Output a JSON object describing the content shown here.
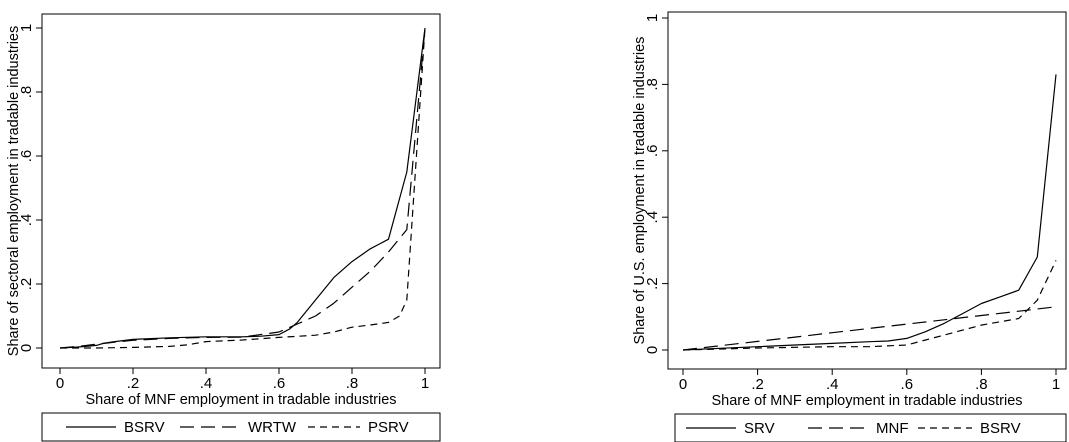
{
  "chart_data": [
    {
      "type": "line",
      "ylabel": "Share of sectoral employment in tradable industries",
      "xlabel": "Share of MNF employment in tradable industries",
      "xlim": [
        0,
        1
      ],
      "ylim": [
        0,
        1
      ],
      "x_ticks": [
        0,
        0.2,
        0.4,
        0.6,
        0.8,
        1
      ],
      "x_tick_labels": [
        "0",
        ".2",
        ".4",
        ".6",
        ".8",
        "1"
      ],
      "y_ticks": [
        0,
        0.2,
        0.4,
        0.6,
        0.8,
        1
      ],
      "y_tick_labels": [
        "0",
        ".2",
        ".4",
        ".6",
        ".8",
        "1"
      ],
      "grid": false,
      "legend_position": "bottom",
      "series": [
        {
          "name": "BSRV",
          "dash": "solid",
          "x": [
            0,
            0.05,
            0.1,
            0.12,
            0.15,
            0.2,
            0.3,
            0.4,
            0.5,
            0.55,
            0.6,
            0.63,
            0.65,
            0.7,
            0.75,
            0.8,
            0.85,
            0.9,
            0.95,
            1.0
          ],
          "y": [
            0,
            0.003,
            0.008,
            0.015,
            0.02,
            0.027,
            0.032,
            0.035,
            0.035,
            0.037,
            0.042,
            0.06,
            0.08,
            0.15,
            0.22,
            0.27,
            0.31,
            0.34,
            0.55,
            1.0
          ]
        },
        {
          "name": "WRTW",
          "dash": "long",
          "x": [
            0,
            0.05,
            0.1,
            0.15,
            0.2,
            0.3,
            0.4,
            0.5,
            0.6,
            0.65,
            0.7,
            0.75,
            0.8,
            0.85,
            0.9,
            0.95,
            1.0
          ],
          "y": [
            0,
            0.005,
            0.012,
            0.018,
            0.024,
            0.03,
            0.033,
            0.034,
            0.05,
            0.075,
            0.1,
            0.14,
            0.19,
            0.24,
            0.3,
            0.37,
            1.0
          ]
        },
        {
          "name": "PSRV",
          "dash": "short",
          "x": [
            0,
            0.1,
            0.2,
            0.3,
            0.35,
            0.4,
            0.5,
            0.6,
            0.7,
            0.75,
            0.8,
            0.85,
            0.9,
            0.93,
            0.95,
            1.0
          ],
          "y": [
            0,
            0.0,
            0.002,
            0.005,
            0.01,
            0.02,
            0.025,
            0.033,
            0.04,
            0.05,
            0.065,
            0.072,
            0.08,
            0.1,
            0.15,
            1.0
          ]
        }
      ]
    },
    {
      "type": "line",
      "ylabel": "Share of U.S. employment in tradable industries",
      "xlabel": "Share of MNF employment in tradable industries",
      "xlim": [
        0,
        1
      ],
      "ylim": [
        0,
        1
      ],
      "x_ticks": [
        0,
        0.2,
        0.4,
        0.6,
        0.8,
        1
      ],
      "x_tick_labels": [
        "0",
        ".2",
        ".4",
        ".6",
        ".8",
        "1"
      ],
      "y_ticks": [
        0,
        0.2,
        0.4,
        0.6,
        0.8,
        1
      ],
      "y_tick_labels": [
        "0",
        ".2",
        ".4",
        ".6",
        ".8",
        "1"
      ],
      "grid": false,
      "legend_position": "bottom",
      "series": [
        {
          "name": "SRV",
          "dash": "solid",
          "x": [
            0,
            0.1,
            0.2,
            0.3,
            0.4,
            0.5,
            0.55,
            0.6,
            0.65,
            0.7,
            0.75,
            0.8,
            0.85,
            0.9,
            0.95,
            1.0
          ],
          "y": [
            0,
            0.005,
            0.01,
            0.015,
            0.02,
            0.025,
            0.027,
            0.035,
            0.055,
            0.08,
            0.11,
            0.14,
            0.16,
            0.18,
            0.28,
            0.83
          ]
        },
        {
          "name": "MNF",
          "dash": "long",
          "x": [
            0,
            0.1,
            0.2,
            0.3,
            0.4,
            0.5,
            0.6,
            0.7,
            0.8,
            0.9,
            1.0
          ],
          "y": [
            0,
            0.013,
            0.026,
            0.039,
            0.052,
            0.065,
            0.078,
            0.091,
            0.104,
            0.117,
            0.13
          ]
        },
        {
          "name": "BSRV",
          "dash": "short",
          "x": [
            0,
            0.1,
            0.2,
            0.3,
            0.4,
            0.5,
            0.6,
            0.65,
            0.7,
            0.75,
            0.8,
            0.85,
            0.9,
            0.95,
            1.0
          ],
          "y": [
            0,
            0.003,
            0.006,
            0.008,
            0.01,
            0.01,
            0.015,
            0.03,
            0.045,
            0.06,
            0.075,
            0.085,
            0.095,
            0.15,
            0.27
          ]
        }
      ]
    }
  ]
}
